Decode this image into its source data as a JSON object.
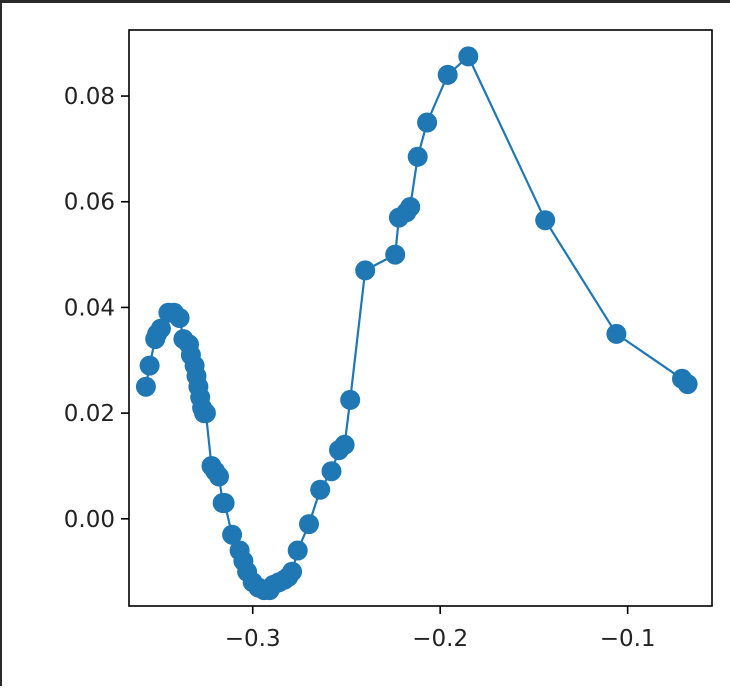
{
  "chart_data": {
    "type": "line",
    "title": "",
    "xlabel": "",
    "ylabel": "",
    "xlim": [
      -0.366,
      -0.055
    ],
    "ylim": [
      -0.0165,
      0.0925
    ],
    "grid": false,
    "colors": {
      "series": "#1f77b4",
      "axes": "#000000",
      "frame": "#2a2a2a"
    },
    "x_ticks": [
      {
        "value": -0.3,
        "label": "−0.3"
      },
      {
        "value": -0.2,
        "label": "−0.2"
      },
      {
        "value": -0.1,
        "label": "−0.1"
      }
    ],
    "y_ticks": [
      {
        "value": 0.0,
        "label": "0.00"
      },
      {
        "value": 0.02,
        "label": "0.02"
      },
      {
        "value": 0.04,
        "label": "0.04"
      },
      {
        "value": 0.06,
        "label": "0.06"
      },
      {
        "value": 0.08,
        "label": "0.08"
      }
    ],
    "series": [
      {
        "marker": "o",
        "x": [
          -0.357,
          -0.355,
          -0.352,
          -0.351,
          -0.349,
          -0.345,
          -0.342,
          -0.339,
          -0.337,
          -0.334,
          -0.333,
          -0.331,
          -0.33,
          -0.329,
          -0.328,
          -0.327,
          -0.326,
          -0.325,
          -0.322,
          -0.32,
          -0.318,
          -0.316,
          -0.315,
          -0.311,
          -0.307,
          -0.305,
          -0.303,
          -0.3,
          -0.297,
          -0.294,
          -0.291,
          -0.289,
          -0.286,
          -0.283,
          -0.281,
          -0.279,
          -0.276,
          -0.27,
          -0.264,
          -0.258,
          -0.254,
          -0.251,
          -0.248,
          -0.24,
          -0.224,
          -0.222,
          -0.218,
          -0.216,
          -0.212,
          -0.207,
          -0.196,
          -0.185,
          -0.144,
          -0.106,
          -0.071,
          -0.068
        ],
        "y": [
          0.025,
          0.029,
          0.034,
          0.035,
          0.036,
          0.039,
          0.039,
          0.038,
          0.034,
          0.033,
          0.031,
          0.029,
          0.027,
          0.025,
          0.023,
          0.021,
          0.02,
          0.02,
          0.01,
          0.009,
          0.008,
          0.003,
          0.003,
          -0.003,
          -0.006,
          -0.008,
          -0.01,
          -0.012,
          -0.013,
          -0.0135,
          -0.0135,
          -0.0125,
          -0.012,
          -0.0115,
          -0.011,
          -0.01,
          -0.006,
          -0.001,
          0.0055,
          0.009,
          0.013,
          0.014,
          0.0225,
          0.047,
          0.05,
          0.057,
          0.058,
          0.059,
          0.0685,
          0.075,
          0.084,
          0.0875,
          0.0565,
          0.035,
          0.0265,
          0.0255
        ]
      }
    ]
  }
}
